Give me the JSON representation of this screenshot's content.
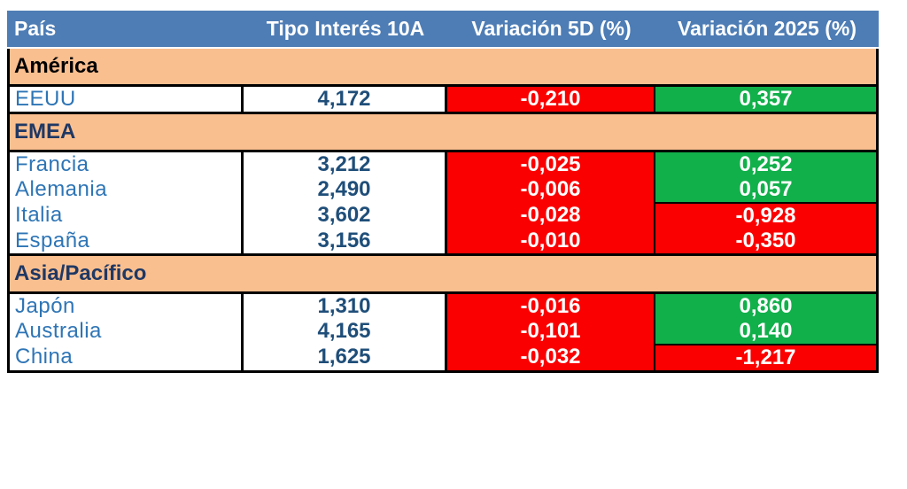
{
  "chart_data": {
    "type": "table",
    "columns": [
      "País",
      "Tipo Interés 10A",
      "Variación 5D (%)",
      "Variación 2025 (%)"
    ],
    "sections": [
      {
        "label": "América",
        "label_color": "#000000",
        "rows": [
          {
            "country": "EEUU",
            "rate_10y": "4,172",
            "change_5d": "-0,210",
            "change_5d_sign": "negative",
            "change_2025": "0,357",
            "change_2025_sign": "positive"
          }
        ]
      },
      {
        "label": "EMEA",
        "label_color": "#1F3864",
        "rows": [
          {
            "country": "Francia",
            "rate_10y": "3,212",
            "change_5d": "-0,025",
            "change_5d_sign": "negative",
            "change_2025": "0,252",
            "change_2025_sign": "positive"
          },
          {
            "country": "Alemania",
            "rate_10y": "2,490",
            "change_5d": "-0,006",
            "change_5d_sign": "negative",
            "change_2025": "0,057",
            "change_2025_sign": "positive"
          },
          {
            "country": "Italia",
            "rate_10y": "3,602",
            "change_5d": "-0,028",
            "change_5d_sign": "negative",
            "change_2025": "-0,928",
            "change_2025_sign": "negative"
          },
          {
            "country": "España",
            "rate_10y": "3,156",
            "change_5d": "-0,010",
            "change_5d_sign": "negative",
            "change_2025": "-0,350",
            "change_2025_sign": "negative"
          }
        ]
      },
      {
        "label": "Asia/Pacífico",
        "label_color": "#1F3864",
        "rows": [
          {
            "country": "Japón",
            "rate_10y": "1,310",
            "change_5d": "-0,016",
            "change_5d_sign": "negative",
            "change_2025": "0,860",
            "change_2025_sign": "positive"
          },
          {
            "country": "Australia",
            "rate_10y": "4,165",
            "change_5d": "-0,101",
            "change_5d_sign": "negative",
            "change_2025": "0,140",
            "change_2025_sign": "positive"
          },
          {
            "country": "China",
            "rate_10y": "1,625",
            "change_5d": "-0,032",
            "change_5d_sign": "negative",
            "change_2025": "-1,217",
            "change_2025_sign": "negative"
          }
        ]
      }
    ],
    "colors": {
      "header_bg": "#4E7DB5",
      "header_text": "#FFFFFF",
      "section_bg": "#FABF8F",
      "negative_bg": "#FB0000",
      "positive_bg": "#11B04B",
      "country_text": "#2E75B6",
      "rate_text": "#1F4E79",
      "change_text": "#FFFFFF",
      "border": "#000000"
    }
  }
}
